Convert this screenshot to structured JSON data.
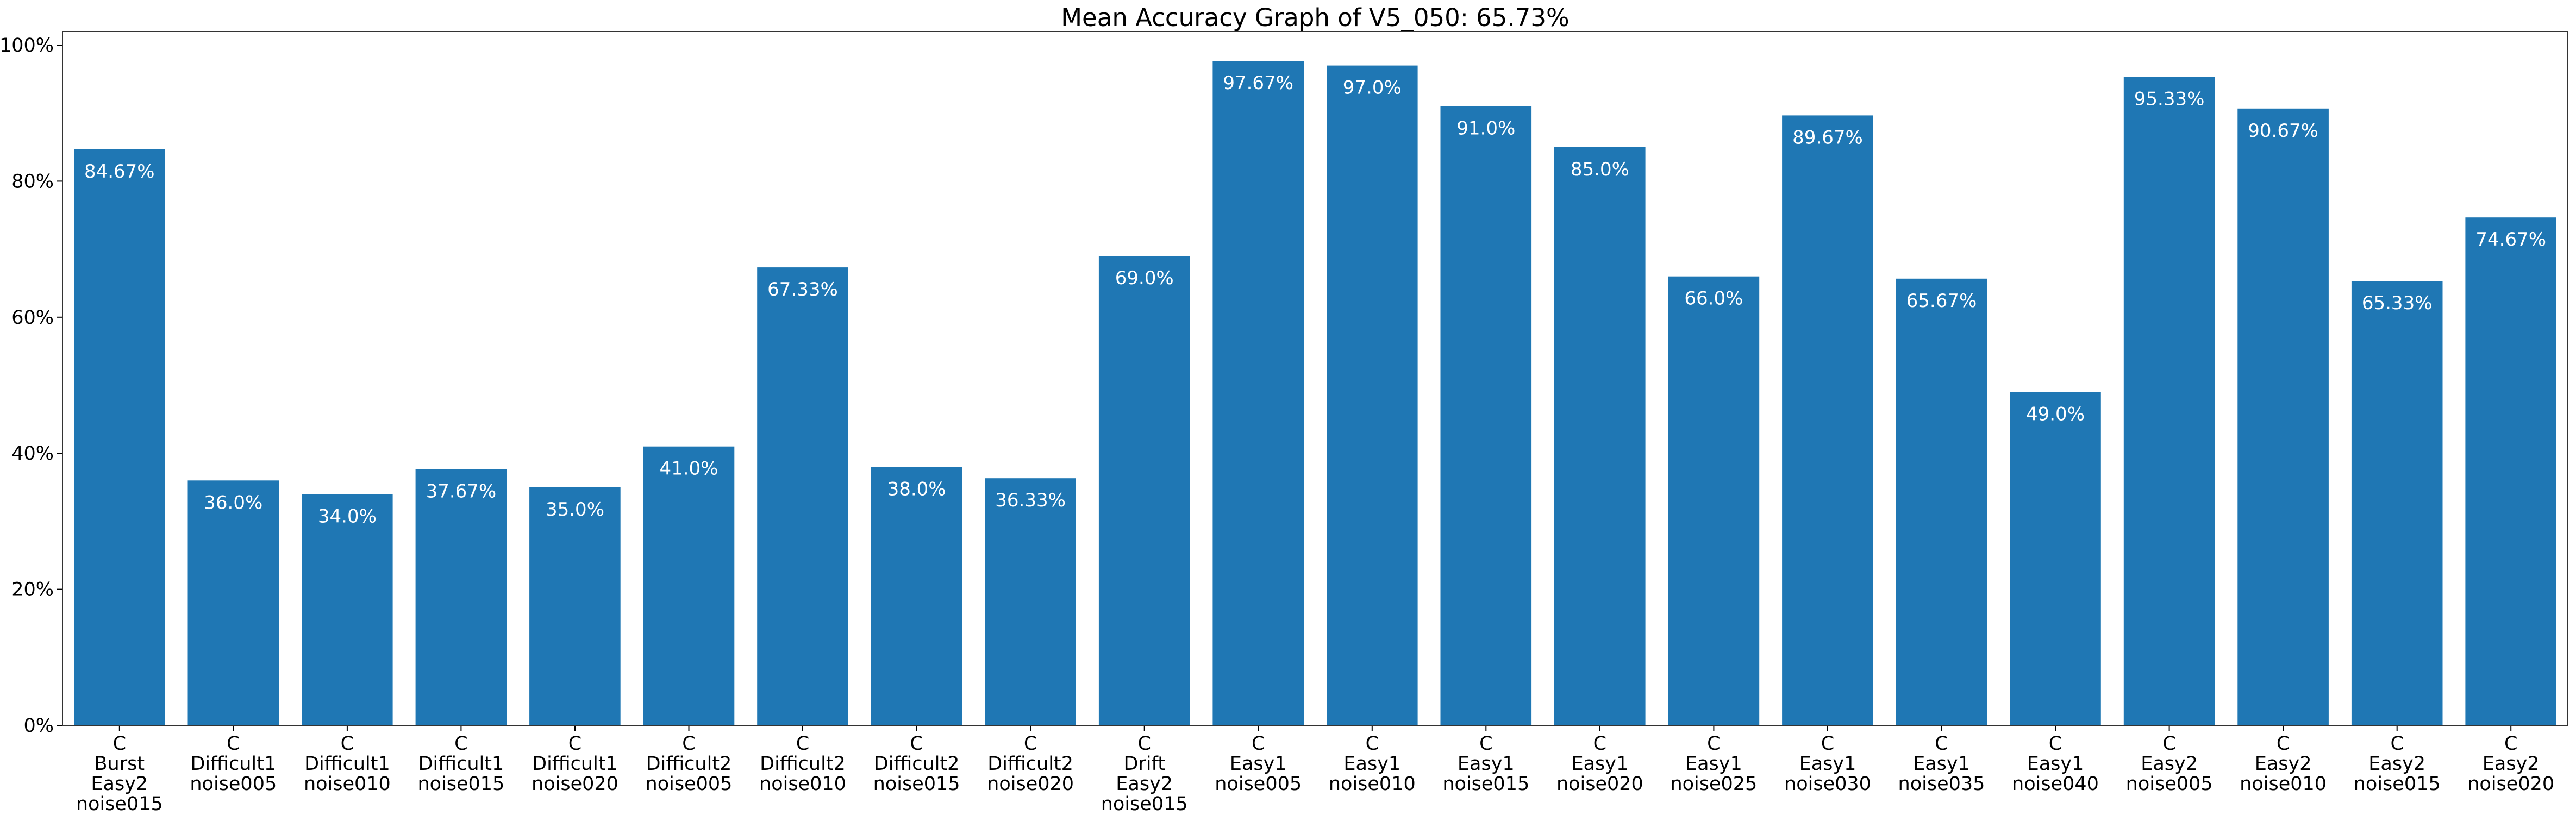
{
  "chart_data": {
    "type": "bar",
    "title": "Mean Accuracy Graph of V5_050: 65.73%",
    "xlabel": "",
    "ylabel": "",
    "ylim": [
      0,
      102
    ],
    "yticks": [
      0,
      20,
      40,
      60,
      80,
      100
    ],
    "ytick_labels": [
      "0%",
      "20%",
      "40%",
      "60%",
      "80%",
      "100%"
    ],
    "grid": false,
    "legend": false,
    "bar_color": "#1f77b4",
    "label_color": "#ffffff",
    "categories": [
      [
        "C",
        "Burst",
        "Easy2",
        "noise015"
      ],
      [
        "C",
        "Difficult1",
        "noise005"
      ],
      [
        "C",
        "Difficult1",
        "noise010"
      ],
      [
        "C",
        "Difficult1",
        "noise015"
      ],
      [
        "C",
        "Difficult1",
        "noise020"
      ],
      [
        "C",
        "Difficult2",
        "noise005"
      ],
      [
        "C",
        "Difficult2",
        "noise010"
      ],
      [
        "C",
        "Difficult2",
        "noise015"
      ],
      [
        "C",
        "Difficult2",
        "noise020"
      ],
      [
        "C",
        "Drift",
        "Easy2",
        "noise015"
      ],
      [
        "C",
        "Easy1",
        "noise005"
      ],
      [
        "C",
        "Easy1",
        "noise010"
      ],
      [
        "C",
        "Easy1",
        "noise015"
      ],
      [
        "C",
        "Easy1",
        "noise020"
      ],
      [
        "C",
        "Easy1",
        "noise025"
      ],
      [
        "C",
        "Easy1",
        "noise030"
      ],
      [
        "C",
        "Easy1",
        "noise035"
      ],
      [
        "C",
        "Easy1",
        "noise040"
      ],
      [
        "C",
        "Easy2",
        "noise005"
      ],
      [
        "C",
        "Easy2",
        "noise010"
      ],
      [
        "C",
        "Easy2",
        "noise015"
      ],
      [
        "C",
        "Easy2",
        "noise020"
      ]
    ],
    "values": [
      84.67,
      36.0,
      34.0,
      37.67,
      35.0,
      41.0,
      67.33,
      38.0,
      36.33,
      69.0,
      97.67,
      97.0,
      91.0,
      85.0,
      66.0,
      89.67,
      65.67,
      49.0,
      95.33,
      90.67,
      65.33,
      74.67
    ],
    "value_labels": [
      "84.67%",
      "36.0%",
      "34.0%",
      "37.67%",
      "35.0%",
      "41.0%",
      "67.33%",
      "38.0%",
      "36.33%",
      "69.0%",
      "97.67%",
      "97.0%",
      "91.0%",
      "85.0%",
      "66.0%",
      "89.67%",
      "65.67%",
      "49.0%",
      "95.33%",
      "90.67%",
      "65.33%",
      "74.67%"
    ]
  }
}
